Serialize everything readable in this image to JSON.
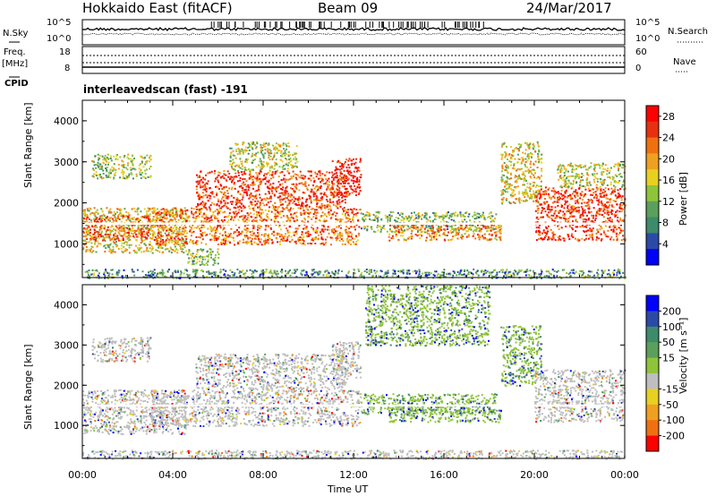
{
  "header": {
    "station": "Hokkaido East (fitACF)",
    "beam": "Beam 09",
    "date": "24/Mar/2017"
  },
  "left_labels": {
    "nsky": "N.Sky",
    "freq": "Freq.",
    "freq_unit": "[MHz]",
    "cpid": "CPID",
    "nsky_ticks": [
      "10^5",
      "10^0"
    ],
    "freq_ticks": [
      "18",
      "8"
    ]
  },
  "right_labels": {
    "nsearch": "N.Search",
    "nave": "Nave",
    "nsearch_ticks": [
      "10^5",
      "10^0"
    ],
    "nave_ticks": [
      "60",
      "0"
    ]
  },
  "cpid_text": "interleavedscan (fast) -191",
  "colors": {
    "power": [
      "#0000ff",
      "#2b4aa8",
      "#3d8b6b",
      "#5aa05a",
      "#8fc43a",
      "#e8d020",
      "#f0a020",
      "#f07010",
      "#e83010",
      "#ff0000"
    ],
    "velocity": [
      "#0000ff",
      "#2b4aa8",
      "#3d8b6b",
      "#5aa05a",
      "#8fc43a",
      "#bebebe",
      "#e8d020",
      "#f0a020",
      "#f07010",
      "#ff0000"
    ],
    "ground_scatter": "#bebebe"
  },
  "chart_data": [
    {
      "type": "heatmap",
      "name": "power",
      "ylabel": "Slant Range [km]",
      "xlabel": "Time UT",
      "x_ticks": [
        "00:00",
        "04:00",
        "08:00",
        "12:00",
        "16:00",
        "20:00",
        "00:00"
      ],
      "x_range_hours": [
        0,
        24
      ],
      "ylim": [
        180,
        4500
      ],
      "y_ticks": [
        1000,
        2000,
        3000,
        4000
      ],
      "colorbar": {
        "label": "Power [dB]",
        "ticks": [
          "4",
          "8",
          "12",
          "16",
          "20",
          "24",
          "28"
        ],
        "range": [
          0,
          30
        ]
      },
      "regions": [
        {
          "t": [
            0.0,
            4.6
          ],
          "r": [
            800,
            1900
          ],
          "level": 0.55
        },
        {
          "t": [
            0.0,
            3.0
          ],
          "r": [
            1100,
            1700
          ],
          "level": 0.8
        },
        {
          "t": [
            0.4,
            3.0
          ],
          "r": [
            2600,
            3200
          ],
          "level": 0.45
        },
        {
          "t": [
            3.0,
            12.3
          ],
          "r": [
            1000,
            1900
          ],
          "level": 0.75
        },
        {
          "t": [
            5.0,
            11.7
          ],
          "r": [
            1900,
            2800
          ],
          "level": 0.85
        },
        {
          "t": [
            6.5,
            9.5
          ],
          "r": [
            2800,
            3500
          ],
          "level": 0.5
        },
        {
          "t": [
            11.0,
            12.3
          ],
          "r": [
            2200,
            3100
          ],
          "level": 0.95
        },
        {
          "t": [
            12.3,
            18.3
          ],
          "r": [
            1300,
            1800
          ],
          "level": 0.4
        },
        {
          "t": [
            13.5,
            18.5
          ],
          "r": [
            1100,
            1500
          ],
          "level": 0.7
        },
        {
          "t": [
            18.5,
            20.3
          ],
          "r": [
            2000,
            3500
          ],
          "level": 0.55
        },
        {
          "t": [
            20.0,
            24.0
          ],
          "r": [
            1100,
            2400
          ],
          "level": 0.85
        },
        {
          "t": [
            21.0,
            24.0
          ],
          "r": [
            2400,
            3000
          ],
          "level": 0.5
        },
        {
          "t": [
            0.0,
            24.0
          ],
          "r": [
            180,
            400
          ],
          "level": 0.3
        },
        {
          "t": [
            4.5,
            6.0
          ],
          "r": [
            500,
            900
          ],
          "level": 0.4
        }
      ]
    },
    {
      "type": "heatmap",
      "name": "velocity",
      "ylabel": "Slant Range [km]",
      "xlabel": "Time UT",
      "x_ticks": [
        "00:00",
        "04:00",
        "08:00",
        "12:00",
        "16:00",
        "20:00",
        "00:00"
      ],
      "x_range_hours": [
        0,
        24
      ],
      "ylim": [
        180,
        4500
      ],
      "y_ticks": [
        1000,
        2000,
        3000,
        4000
      ],
      "colorbar": {
        "label": "Velocity [m s⁻¹]",
        "ticks": [
          "200",
          "100",
          "50",
          "15",
          "-15",
          "-50",
          "-100",
          "-200"
        ],
        "range": [
          -250,
          250
        ]
      },
      "regions": [
        {
          "t": [
            0.0,
            4.6
          ],
          "r": [
            800,
            1900
          ],
          "level": 0.5
        },
        {
          "t": [
            0.4,
            3.0
          ],
          "r": [
            2600,
            3200
          ],
          "level": 0.5
        },
        {
          "t": [
            3.0,
            12.3
          ],
          "r": [
            1000,
            1900
          ],
          "level": 0.5
        },
        {
          "t": [
            5.0,
            11.7
          ],
          "r": [
            1900,
            2800
          ],
          "level": 0.5
        },
        {
          "t": [
            11.0,
            12.3
          ],
          "r": [
            2200,
            3100
          ],
          "level": 0.5
        },
        {
          "t": [
            12.3,
            18.3
          ],
          "r": [
            1300,
            1800
          ],
          "level": 0.35
        },
        {
          "t": [
            13.5,
            18.5
          ],
          "r": [
            1100,
            1500
          ],
          "level": 0.3
        },
        {
          "t": [
            18.5,
            20.3
          ],
          "r": [
            2000,
            3500
          ],
          "level": 0.35
        },
        {
          "t": [
            20.0,
            24.0
          ],
          "r": [
            1100,
            2400
          ],
          "level": 0.5
        },
        {
          "t": [
            12.5,
            18.0
          ],
          "r": [
            3000,
            4500
          ],
          "level": 0.2
        },
        {
          "t": [
            0.0,
            24.0
          ],
          "r": [
            180,
            400
          ],
          "level": 0.5
        }
      ]
    }
  ]
}
